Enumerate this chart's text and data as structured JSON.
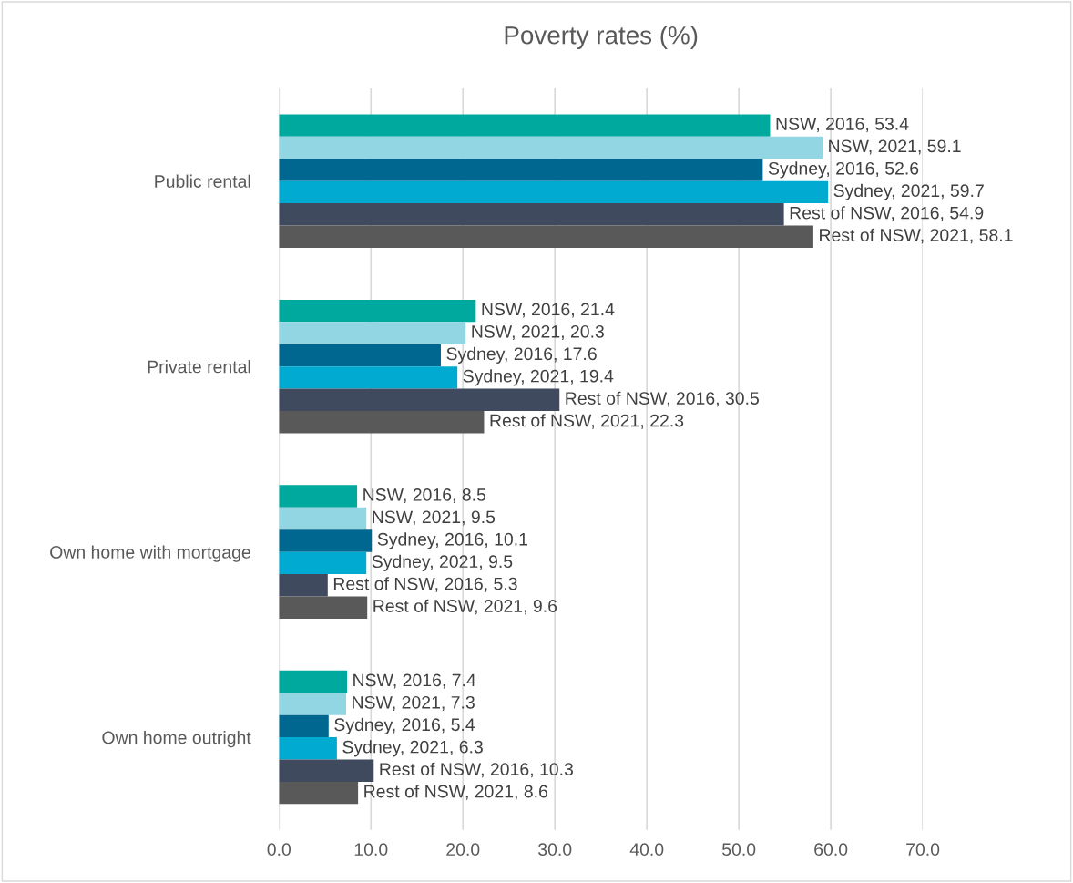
{
  "chart_data": {
    "type": "bar",
    "orientation": "horizontal",
    "title": "Poverty rates (%)",
    "categories": [
      "Public rental",
      "Private rental",
      "Own home with mortgage",
      "Own home outright"
    ],
    "series": [
      {
        "color": "#00a99d",
        "values": [
          53.4,
          21.4,
          8.5,
          7.4
        ],
        "value_labels": [
          "NSW, 2016, 53.4",
          "NSW, 2016, 21.4",
          "NSW, 2016, 8.5",
          "NSW, 2016, 7.4"
        ]
      },
      {
        "color": "#92d5e3",
        "values": [
          59.1,
          20.3,
          9.5,
          7.3
        ],
        "value_labels": [
          "NSW, 2021, 59.1",
          "NSW, 2021, 20.3",
          "NSW, 2021, 9.5",
          "NSW, 2021, 7.3"
        ]
      },
      {
        "color": "#006890",
        "values": [
          52.6,
          17.6,
          10.1,
          5.4
        ],
        "value_labels": [
          "Sydney, 2016, 52.6",
          "Sydney, 2016, 17.6",
          "Sydney, 2016, 10.1",
          "Sydney, 2016, 5.4"
        ]
      },
      {
        "color": "#00aad0",
        "values": [
          59.7,
          19.4,
          9.5,
          6.3
        ],
        "value_labels": [
          "Sydney, 2021, 59.7",
          "Sydney, 2021, 19.4",
          "Sydney, 2021, 9.5",
          "Sydney, 2021, 6.3"
        ]
      },
      {
        "color": "#3f4a5f",
        "values": [
          54.9,
          30.5,
          5.3,
          10.3
        ],
        "value_labels": [
          "Rest of NSW, 2016, 54.9",
          "Rest of NSW, 2016, 30.5",
          "Rest of NSW, 2016, 5.3",
          "Rest of NSW, 2016, 10.3"
        ]
      },
      {
        "color": "#595959",
        "values": [
          58.1,
          22.3,
          9.6,
          8.6
        ],
        "value_labels": [
          "Rest of NSW, 2021, 58.1",
          "Rest of NSW, 2021, 22.3",
          "Rest of NSW, 2021, 9.6",
          "Rest of NSW, 2021, 8.6"
        ]
      }
    ],
    "xlim": [
      0,
      70
    ],
    "xticks": [
      {
        "value": 0,
        "label": "0.0"
      },
      {
        "value": 10,
        "label": "10.0"
      },
      {
        "value": 20,
        "label": "20.0"
      },
      {
        "value": 30,
        "label": "30.0"
      },
      {
        "value": 40,
        "label": "40.0"
      },
      {
        "value": 50,
        "label": "50.0"
      },
      {
        "value": 60,
        "label": "60.0"
      },
      {
        "value": 70,
        "label": "70.0"
      }
    ],
    "grid": "x",
    "legend": false
  }
}
